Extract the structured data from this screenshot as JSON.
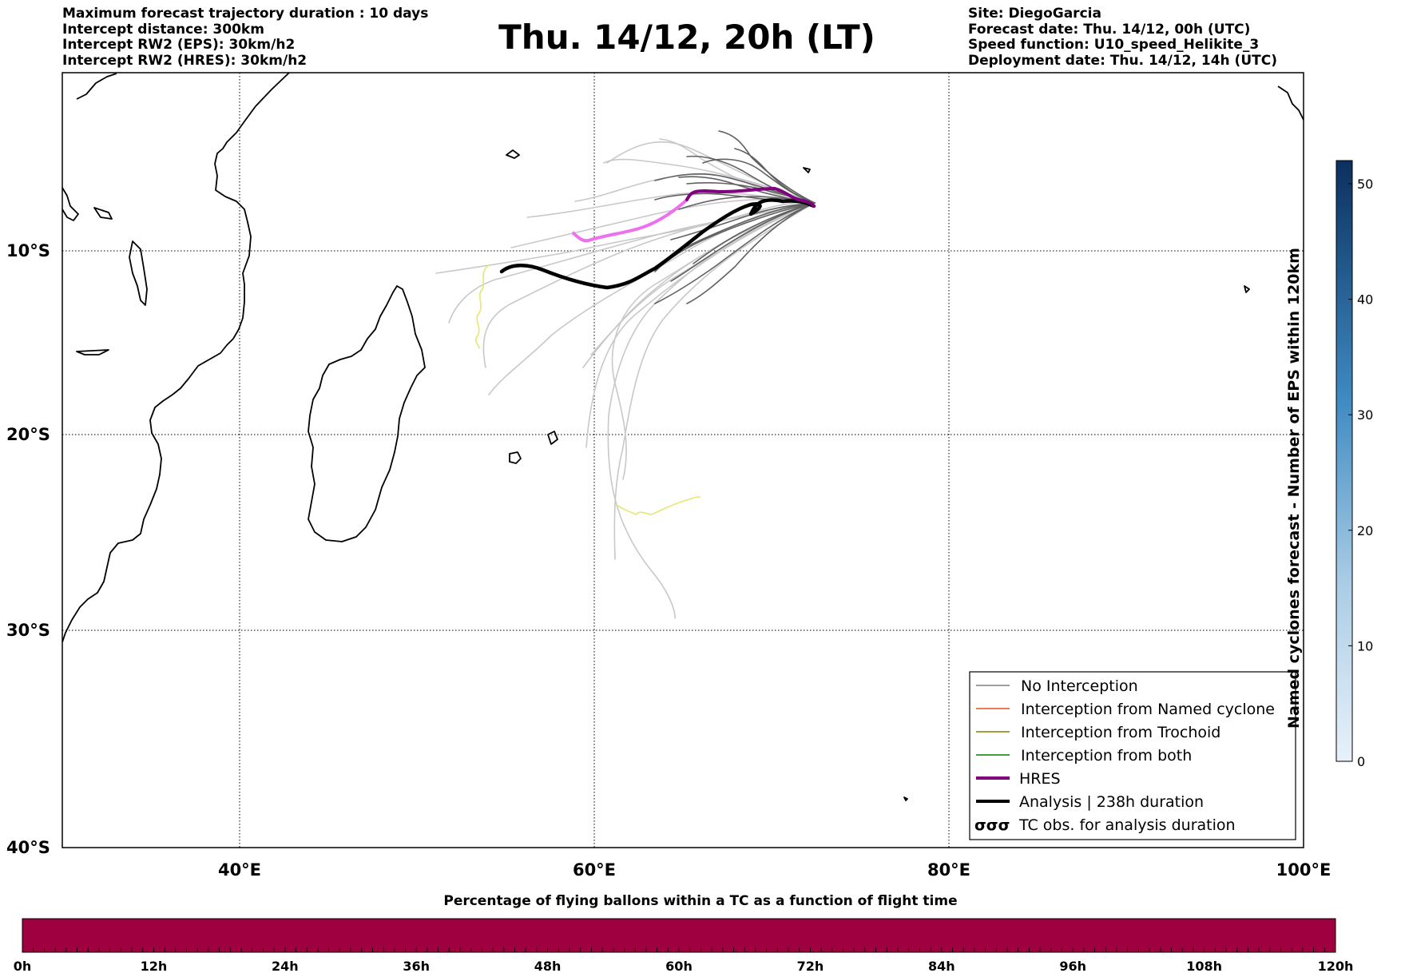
{
  "header_left": [
    "Maximum forecast trajectory duration : 10 days",
    "Intercept distance: 300km",
    "Intercept RW2 (EPS):  30km/h2",
    "Intercept RW2 (HRES): 30km/h2"
  ],
  "title": "Thu. 14/12, 20h (LT)",
  "header_right": [
    "Site: DiegoGarcia",
    "Forecast date: Thu. 14/12, 00h (UTC)",
    "Speed function: U10_speed_Helikite_3",
    "Deployment date: Thu. 14/12, 14h (UTC)"
  ],
  "map": {
    "lat_labels": [
      {
        "lat": -10,
        "label": "10°S"
      },
      {
        "lat": -20,
        "label": "20°S"
      },
      {
        "lat": -30,
        "label": "30°S"
      },
      {
        "lat": -40,
        "label": "40°S"
      }
    ],
    "lon_labels": [
      {
        "lon": 40,
        "label": "40°E"
      },
      {
        "lon": 60,
        "label": "60°E"
      },
      {
        "lon": 80,
        "label": "80°E"
      },
      {
        "lon": 100,
        "label": "100°E"
      }
    ],
    "colors": {
      "no_interception": "#7f7f7f",
      "named_cyclone": "#e8501a",
      "trochoid": "#808000",
      "both": "#008000",
      "hres": "#800080",
      "hres_light": "#ee70ee",
      "analysis": "#000000",
      "tc_obs": "#e6e66e",
      "eps_light": "#c8c8c8",
      "eps_dark": "#606060"
    }
  },
  "legend": {
    "items": [
      {
        "key": "no_interception",
        "label": "No Interception"
      },
      {
        "key": "named_cyclone",
        "label": "Interception from Named cyclone"
      },
      {
        "key": "trochoid",
        "label": "Interception from Trochoid"
      },
      {
        "key": "both",
        "label": "Interception from both"
      },
      {
        "key": "hres",
        "label": "HRES"
      },
      {
        "key": "analysis",
        "label": "Analysis | 238h duration"
      },
      {
        "key": "tc_obs",
        "label": "TC obs. for analysis duration"
      }
    ],
    "tc_symbol": "σσσ"
  },
  "colorbar_vertical": {
    "label": "Named cyclones forecast - Number of EPS within 120km",
    "ticks": [
      0,
      10,
      20,
      30,
      40,
      50
    ],
    "max": 52,
    "color_low": "#e8f1fa",
    "color_high": "#0b305f"
  },
  "colorbar_horizontal": {
    "title": "Percentage of flying ballons within a TC as a function of flight time",
    "ticks": [
      "0h",
      "12h",
      "24h",
      "36h",
      "48h",
      "60h",
      "72h",
      "84h",
      "96h",
      "108h",
      "120h"
    ],
    "fill_color": "#9e0040"
  }
}
